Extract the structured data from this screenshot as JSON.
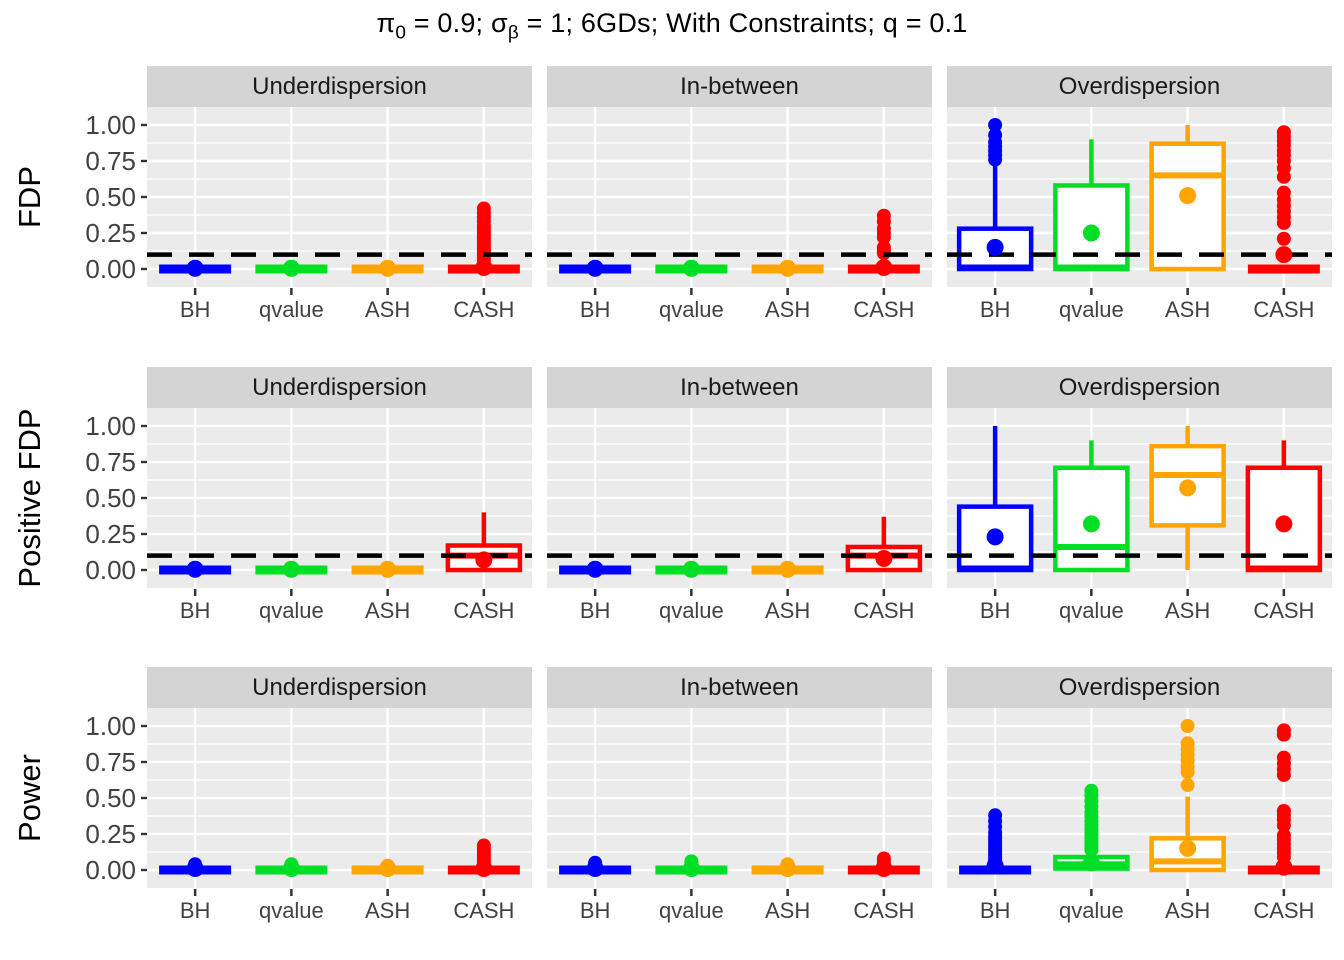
{
  "chart_data": {
    "type": "boxplot-grid",
    "title": {
      "part1": "π",
      "sub1": "0",
      "part2": " = 0.9; ",
      "part3": "σ",
      "sub2": "β",
      "part4": " = 1; 6GDs; With Constraints; q = 0.1"
    },
    "facets": [
      "Underdispersion",
      "In-between",
      "Overdispersion"
    ],
    "methods": [
      "BH",
      "qvalue",
      "ASH",
      "CASH"
    ],
    "method_colors": {
      "BH": "#0000FF",
      "qvalue": "#00DF25",
      "ASH": "#FFA500",
      "CASH": "#FF0000"
    },
    "reference_line_color": "#000000",
    "panel_bg": "#EBEBEB",
    "strip_bg": "#D4D4D4",
    "grid_color": "#FFFFFF",
    "axis_text_color": "#424242",
    "y_ticks": [
      {
        "v": 1.0,
        "label": "1.00"
      },
      {
        "v": 0.75,
        "label": "0.75"
      },
      {
        "v": 0.5,
        "label": "0.50"
      },
      {
        "v": 0.25,
        "label": "0.25"
      },
      {
        "v": 0.0,
        "label": "0.00"
      }
    ],
    "y_range_shown": [
      -0.125,
      1.125
    ],
    "rows": [
      {
        "label": "FDP",
        "dashed_line": 0.1,
        "panels": [
          {
            "facet": "Underdispersion",
            "boxes": [
              {
                "method": "BH",
                "q1": 0,
                "median": 0,
                "q3": 0,
                "lo": 0,
                "hi": 0,
                "mean": 0.005,
                "outliers": []
              },
              {
                "method": "qvalue",
                "q1": 0,
                "median": 0,
                "q3": 0,
                "lo": 0,
                "hi": 0,
                "mean": 0.005,
                "outliers": []
              },
              {
                "method": "ASH",
                "q1": 0,
                "median": 0,
                "q3": 0,
                "lo": 0,
                "hi": 0,
                "mean": 0.005,
                "outliers": []
              },
              {
                "method": "CASH",
                "q1": 0,
                "median": 0,
                "q3": 0,
                "lo": 0,
                "hi": 0,
                "mean": 0.01,
                "outliers": [
                  0.06,
                  0.08,
                  0.1,
                  0.12,
                  0.14,
                  0.16,
                  0.18,
                  0.2,
                  0.22,
                  0.24,
                  0.26,
                  0.28,
                  0.3,
                  0.33,
                  0.36,
                  0.39,
                  0.42
                ]
              }
            ]
          },
          {
            "facet": "In-between",
            "boxes": [
              {
                "method": "BH",
                "q1": 0,
                "median": 0,
                "q3": 0,
                "lo": 0,
                "hi": 0,
                "mean": 0.005,
                "outliers": []
              },
              {
                "method": "qvalue",
                "q1": 0,
                "median": 0,
                "q3": 0,
                "lo": 0,
                "hi": 0,
                "mean": 0.005,
                "outliers": []
              },
              {
                "method": "ASH",
                "q1": 0,
                "median": 0,
                "q3": 0,
                "lo": 0,
                "hi": 0,
                "mean": 0.005,
                "outliers": []
              },
              {
                "method": "CASH",
                "q1": 0,
                "median": 0,
                "q3": 0,
                "lo": 0,
                "hi": 0,
                "mean": 0.01,
                "outliers": [
                  0.11,
                  0.13,
                  0.15,
                  0.22,
                  0.25,
                  0.28,
                  0.33,
                  0.37
                ]
              }
            ]
          },
          {
            "facet": "Overdispersion",
            "boxes": [
              {
                "method": "BH",
                "q1": 0,
                "median": 0.01,
                "q3": 0.28,
                "lo": 0,
                "hi": 0.72,
                "mean": 0.15,
                "outliers": [
                  0.76,
                  0.79,
                  0.82,
                  0.85,
                  0.88,
                  0.93,
                  1.0
                ]
              },
              {
                "method": "qvalue",
                "q1": 0,
                "median": 0.01,
                "q3": 0.58,
                "lo": 0,
                "hi": 0.9,
                "mean": 0.25,
                "outliers": []
              },
              {
                "method": "ASH",
                "q1": 0,
                "median": 0.65,
                "q3": 0.87,
                "lo": 0,
                "hi": 1.0,
                "mean": 0.51,
                "outliers": []
              },
              {
                "method": "CASH",
                "q1": 0,
                "median": 0,
                "q3": 0,
                "lo": 0,
                "hi": 0,
                "mean": 0.1,
                "outliers": [
                  0.21,
                  0.32,
                  0.36,
                  0.4,
                  0.44,
                  0.48,
                  0.53,
                  0.64,
                  0.7,
                  0.75,
                  0.79,
                  0.82,
                  0.86,
                  0.89,
                  0.92,
                  0.95
                ]
              }
            ]
          }
        ]
      },
      {
        "label": "Positive FDP",
        "dashed_line": 0.1,
        "panels": [
          {
            "facet": "Underdispersion",
            "boxes": [
              {
                "method": "BH",
                "q1": 0,
                "median": 0,
                "q3": 0,
                "lo": 0,
                "hi": 0,
                "mean": 0.005,
                "outliers": []
              },
              {
                "method": "qvalue",
                "q1": 0,
                "median": 0,
                "q3": 0,
                "lo": 0,
                "hi": 0,
                "mean": 0.005,
                "outliers": []
              },
              {
                "method": "ASH",
                "q1": 0,
                "median": 0,
                "q3": 0,
                "lo": 0,
                "hi": 0,
                "mean": 0.005,
                "outliers": []
              },
              {
                "method": "CASH",
                "q1": 0,
                "median": 0.1,
                "q3": 0.17,
                "lo": 0,
                "hi": 0.4,
                "mean": 0.07,
                "outliers": []
              }
            ]
          },
          {
            "facet": "In-between",
            "boxes": [
              {
                "method": "BH",
                "q1": 0,
                "median": 0,
                "q3": 0,
                "lo": 0,
                "hi": 0,
                "mean": 0.005,
                "outliers": []
              },
              {
                "method": "qvalue",
                "q1": 0,
                "median": 0,
                "q3": 0,
                "lo": 0,
                "hi": 0,
                "mean": 0.005,
                "outliers": []
              },
              {
                "method": "ASH",
                "q1": 0,
                "median": 0,
                "q3": 0,
                "lo": 0,
                "hi": 0,
                "mean": 0.005,
                "outliers": []
              },
              {
                "method": "CASH",
                "q1": 0,
                "median": 0.1,
                "q3": 0.16,
                "lo": 0,
                "hi": 0.37,
                "mean": 0.08,
                "outliers": []
              }
            ]
          },
          {
            "facet": "Overdispersion",
            "boxes": [
              {
                "method": "BH",
                "q1": 0,
                "median": 0.01,
                "q3": 0.44,
                "lo": 0,
                "hi": 1.0,
                "mean": 0.23,
                "outliers": []
              },
              {
                "method": "qvalue",
                "q1": 0,
                "median": 0.16,
                "q3": 0.71,
                "lo": 0,
                "hi": 0.9,
                "mean": 0.32,
                "outliers": []
              },
              {
                "method": "ASH",
                "q1": 0.31,
                "median": 0.66,
                "q3": 0.86,
                "lo": 0,
                "hi": 1.0,
                "mean": 0.57,
                "outliers": []
              },
              {
                "method": "CASH",
                "q1": 0,
                "median": 0.01,
                "q3": 0.71,
                "lo": 0,
                "hi": 0.9,
                "mean": 0.32,
                "outliers": []
              }
            ]
          }
        ]
      },
      {
        "label": "Power",
        "dashed_line": null,
        "panels": [
          {
            "facet": "Underdispersion",
            "boxes": [
              {
                "method": "BH",
                "q1": 0,
                "median": 0,
                "q3": 0,
                "lo": 0,
                "hi": 0,
                "mean": 0.01,
                "outliers": [
                  0.02,
                  0.03,
                  0.04
                ]
              },
              {
                "method": "qvalue",
                "q1": 0,
                "median": 0,
                "q3": 0,
                "lo": 0,
                "hi": 0,
                "mean": 0.01,
                "outliers": [
                  0.02,
                  0.03,
                  0.04
                ]
              },
              {
                "method": "ASH",
                "q1": 0,
                "median": 0,
                "q3": 0,
                "lo": 0,
                "hi": 0,
                "mean": 0.01,
                "outliers": [
                  0.02,
                  0.03
                ]
              },
              {
                "method": "CASH",
                "q1": 0,
                "median": 0,
                "q3": 0,
                "lo": 0,
                "hi": 0,
                "mean": 0.01,
                "outliers": [
                  0.03,
                  0.05,
                  0.07,
                  0.09,
                  0.11,
                  0.13,
                  0.15,
                  0.17
                ]
              }
            ]
          },
          {
            "facet": "In-between",
            "boxes": [
              {
                "method": "BH",
                "q1": 0,
                "median": 0,
                "q3": 0,
                "lo": 0,
                "hi": 0,
                "mean": 0.01,
                "outliers": [
                  0.02,
                  0.03,
                  0.04,
                  0.05
                ]
              },
              {
                "method": "qvalue",
                "q1": 0,
                "median": 0,
                "q3": 0,
                "lo": 0,
                "hi": 0,
                "mean": 0.01,
                "outliers": [
                  0.02,
                  0.03,
                  0.05,
                  0.06
                ]
              },
              {
                "method": "ASH",
                "q1": 0,
                "median": 0,
                "q3": 0,
                "lo": 0,
                "hi": 0,
                "mean": 0.01,
                "outliers": [
                  0.02,
                  0.03,
                  0.04
                ]
              },
              {
                "method": "CASH",
                "q1": 0,
                "median": 0,
                "q3": 0,
                "lo": 0,
                "hi": 0,
                "mean": 0.01,
                "outliers": [
                  0.02,
                  0.04,
                  0.06,
                  0.08
                ]
              }
            ]
          },
          {
            "facet": "Overdispersion",
            "boxes": [
              {
                "method": "BH",
                "q1": 0,
                "median": 0,
                "q3": 0,
                "lo": 0,
                "hi": 0,
                "mean": 0.03,
                "outliers": [
                  0.05,
                  0.07,
                  0.09,
                  0.11,
                  0.13,
                  0.15,
                  0.17,
                  0.19,
                  0.21,
                  0.23,
                  0.26,
                  0.3,
                  0.34,
                  0.38
                ]
              },
              {
                "method": "qvalue",
                "q1": 0.01,
                "median": 0.04,
                "q3": 0.09,
                "lo": 0,
                "hi": 0.12,
                "mean": 0.05,
                "outliers": [
                  0.14,
                  0.16,
                  0.18,
                  0.2,
                  0.22,
                  0.24,
                  0.26,
                  0.28,
                  0.31,
                  0.34,
                  0.37,
                  0.4,
                  0.44,
                  0.48,
                  0.52,
                  0.55
                ]
              },
              {
                "method": "ASH",
                "q1": 0,
                "median": 0.06,
                "q3": 0.22,
                "lo": 0,
                "hi": 0.51,
                "mean": 0.15,
                "outliers": [
                  0.59,
                  0.68,
                  0.72,
                  0.76,
                  0.8,
                  0.84,
                  0.88,
                  1.0
                ]
              },
              {
                "method": "CASH",
                "q1": 0,
                "median": 0,
                "q3": 0,
                "lo": 0,
                "hi": 0,
                "mean": 0.02,
                "outliers": [
                  0.09,
                  0.12,
                  0.15,
                  0.18,
                  0.21,
                  0.24,
                  0.31,
                  0.35,
                  0.38,
                  0.41,
                  0.66,
                  0.7,
                  0.74,
                  0.78,
                  0.94,
                  0.97
                ]
              }
            ]
          }
        ]
      }
    ]
  }
}
